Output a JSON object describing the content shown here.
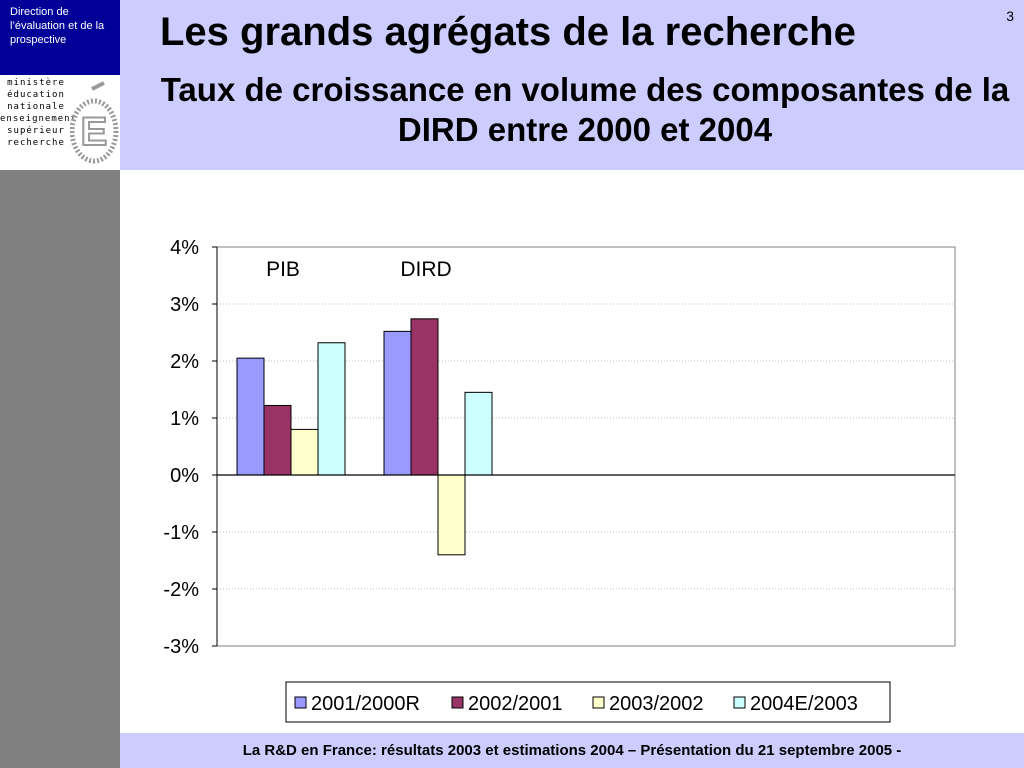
{
  "header": {
    "org_name": "Direction de l’évaluation  et de la prospective",
    "logo_lines": [
      "ministère",
      "éducation",
      "nationale",
      "enseignement",
      "supérieur",
      "recherche"
    ],
    "logo_icon": "ministry-e-logo-icon",
    "title": "Les grands agrégats de la recherche",
    "subtitle": "Taux de croissance en volume des composantes de la DIRD entre 2000 et 2004",
    "page_number": "3"
  },
  "footer": {
    "text": "La R&D en France: résultats 2003 et estimations 2004 – Présentation du 21 septembre 2005 -"
  },
  "colors": {
    "band": "#ccccff",
    "sidebar_blue": "#000099",
    "sidebar_gray": "#808080"
  },
  "chart_data": {
    "type": "bar",
    "categories": [
      "PIB",
      "DIRD"
    ],
    "series": [
      {
        "name": "2001/2000R",
        "values": [
          2.05,
          2.52
        ],
        "color": "#9999ff"
      },
      {
        "name": "2002/2001",
        "values": [
          1.22,
          2.74
        ],
        "color": "#993366"
      },
      {
        "name": "2003/2002",
        "values": [
          0.8,
          -1.4
        ],
        "color": "#ffffcc"
      },
      {
        "name": "2004E/2003",
        "values": [
          2.32,
          1.45
        ],
        "color": "#ccffff"
      }
    ],
    "ylim": [
      -3,
      4
    ],
    "yticks": [
      "-3%",
      "-2%",
      "-1%",
      "0%",
      "1%",
      "2%",
      "3%",
      "4%"
    ],
    "grid": true,
    "legend_position": "bottom",
    "category_labels_position": "top"
  }
}
